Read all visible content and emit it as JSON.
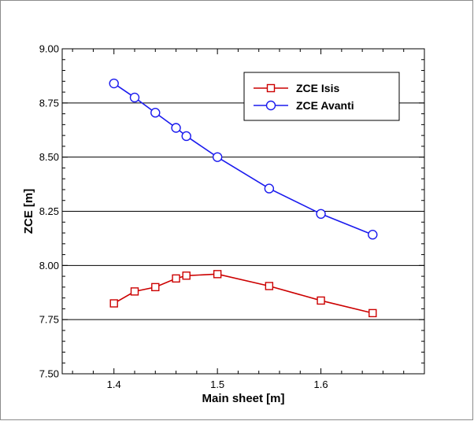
{
  "chart_data": {
    "type": "line",
    "xlabel": "Main sheet [m]",
    "ylabel": "ZCE [m]",
    "xlim": [
      1.35,
      1.7
    ],
    "ylim": [
      7.5,
      9.0
    ],
    "x_ticks": [
      1.4,
      1.5,
      1.6
    ],
    "x_tick_labels": [
      "1.4",
      "1.5",
      "1.6"
    ],
    "y_ticks": [
      7.5,
      7.75,
      8.0,
      8.25,
      8.5,
      8.75,
      9.0
    ],
    "y_tick_labels": [
      "7.50",
      "7.75",
      "8.00",
      "8.25",
      "8.50",
      "8.75",
      "9.00"
    ],
    "grid": "horizontal",
    "legend_position": "top-right",
    "series": [
      {
        "name": "ZCE Isis",
        "color": "#cc0000",
        "marker": "square",
        "x": [
          1.4,
          1.42,
          1.44,
          1.46,
          1.47,
          1.5,
          1.55,
          1.6,
          1.65
        ],
        "y": [
          7.825,
          7.88,
          7.9,
          7.94,
          7.953,
          7.96,
          7.905,
          7.838,
          7.78
        ]
      },
      {
        "name": "ZCE Avanti",
        "color": "#1a1aee",
        "marker": "circle",
        "x": [
          1.4,
          1.42,
          1.44,
          1.46,
          1.47,
          1.5,
          1.55,
          1.6,
          1.65
        ],
        "y": [
          8.84,
          8.775,
          8.705,
          8.635,
          8.597,
          8.5,
          8.355,
          8.238,
          8.142
        ]
      }
    ]
  }
}
